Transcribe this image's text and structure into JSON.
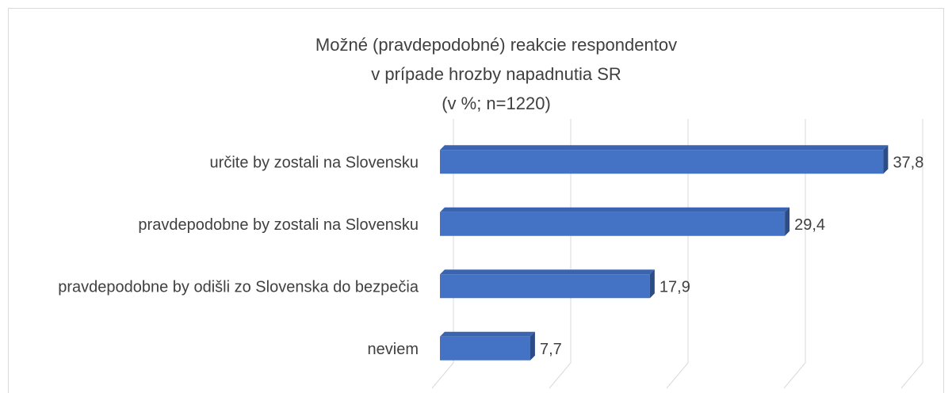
{
  "chart_data": {
    "type": "bar",
    "orientation": "horizontal",
    "title": [
      "Možné (pravdepodobné) reakcie respondentov",
      "v prípade hrozby napadnutia SR",
      "(v %; n=1220)"
    ],
    "categories": [
      "určite by zostali na Slovensku",
      "pravdepodobne by zostali na Slovensku",
      "pravdepodobne by odišli zo Slovenska do bezpečia",
      "neviem"
    ],
    "values": [
      37.8,
      29.4,
      17.9,
      7.7
    ],
    "value_labels": [
      "37,8",
      "29,4",
      "17,9",
      "7,7"
    ],
    "color": "#4472c4",
    "xlim": [
      0,
      40
    ],
    "xticks": [
      0,
      10,
      20,
      30,
      40
    ],
    "grid": true
  }
}
